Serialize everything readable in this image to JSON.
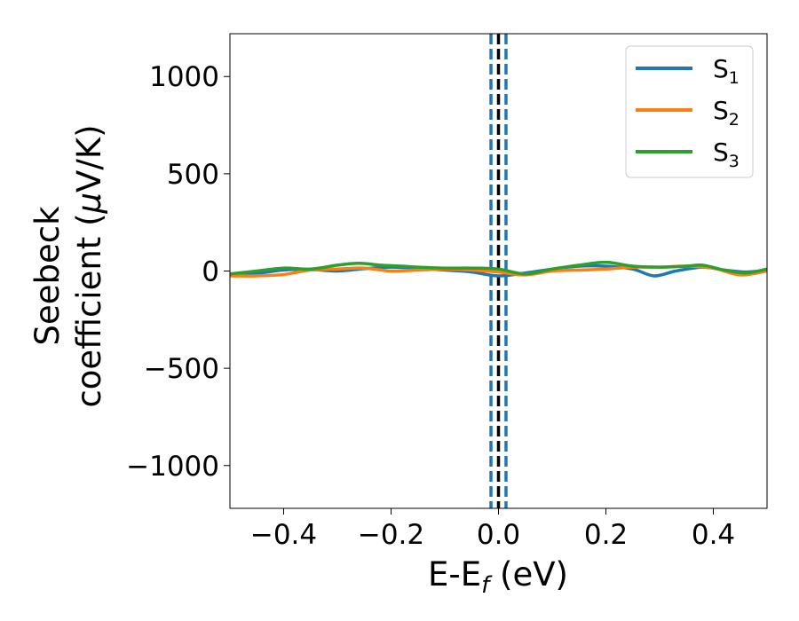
{
  "chart_data": {
    "type": "line",
    "xlabel": {
      "main": "E-E",
      "sub": "f",
      "suffix": " (eV)"
    },
    "ylabel": {
      "line1": "Seebeck",
      "line2": "coefficient  (",
      "mu": "μ",
      "line2_end": "V/K)"
    },
    "xlim": [
      -0.5,
      0.5
    ],
    "ylim": [
      -1220,
      1220
    ],
    "xticks": [
      -0.4,
      -0.2,
      0.0,
      0.2,
      0.4
    ],
    "xtick_labels": [
      "−0.4",
      "−0.2",
      "0.0",
      "0.2",
      "0.4"
    ],
    "yticks": [
      -1000,
      -500,
      0,
      500,
      1000
    ],
    "ytick_labels": [
      "−1000",
      "−500",
      "0",
      "500",
      "1000"
    ],
    "grid": false,
    "legend_position": "top-right",
    "vlines": [
      {
        "x": -0.014,
        "style": "dashed",
        "color": "#1f77b4"
      },
      {
        "x": 0.0,
        "style": "dashed",
        "color": "#000000"
      },
      {
        "x": 0.014,
        "style": "dashed",
        "color": "#1f77b4"
      }
    ],
    "series": [
      {
        "name": "S",
        "sub": "1",
        "color": "#1f77b4",
        "x": [
          -0.5,
          -0.45,
          -0.4,
          -0.35,
          -0.3,
          -0.25,
          -0.2,
          -0.15,
          -0.1,
          -0.05,
          0.0,
          0.05,
          0.1,
          0.15,
          0.2,
          0.25,
          0.29,
          0.33,
          0.38,
          0.42,
          0.46,
          0.5
        ],
        "y": [
          -20,
          -12,
          5,
          8,
          0,
          12,
          20,
          15,
          5,
          -5,
          -25,
          -10,
          10,
          25,
          25,
          10,
          -25,
          0,
          20,
          5,
          -5,
          5
        ]
      },
      {
        "name": "S",
        "sub": "2",
        "color": "#ff7f0e",
        "x": [
          -0.5,
          -0.45,
          -0.4,
          -0.35,
          -0.3,
          -0.25,
          -0.2,
          -0.15,
          -0.1,
          -0.05,
          0.0,
          0.05,
          0.1,
          0.15,
          0.2,
          0.25,
          0.3,
          0.35,
          0.4,
          0.45,
          0.5
        ],
        "y": [
          -25,
          -25,
          -18,
          5,
          10,
          15,
          0,
          5,
          10,
          5,
          -5,
          -20,
          0,
          5,
          10,
          20,
          20,
          25,
          15,
          -20,
          0
        ]
      },
      {
        "name": "S",
        "sub": "3",
        "color": "#2ca02c",
        "x": [
          -0.5,
          -0.45,
          -0.4,
          -0.35,
          -0.3,
          -0.26,
          -0.22,
          -0.18,
          -0.15,
          -0.1,
          -0.05,
          0.0,
          0.05,
          0.1,
          0.15,
          0.2,
          0.25,
          0.3,
          0.35,
          0.38,
          0.42,
          0.46,
          0.5
        ],
        "y": [
          -15,
          0,
          15,
          10,
          30,
          40,
          30,
          25,
          20,
          15,
          15,
          10,
          -15,
          10,
          30,
          45,
          25,
          20,
          25,
          30,
          5,
          -10,
          10
        ]
      }
    ]
  }
}
